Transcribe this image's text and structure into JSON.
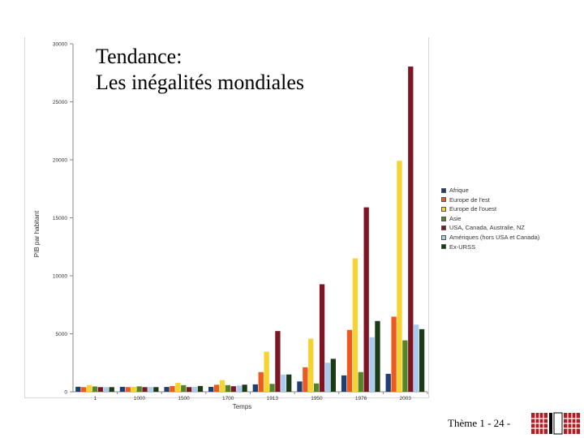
{
  "slide": {
    "title_line1": "Tendance:",
    "title_line2": "Les inégalités mondiales",
    "footer": "Thème 1 - 24 -"
  },
  "chart_data": {
    "type": "bar",
    "title": "",
    "xlabel": "Temps",
    "ylabel": "PIB par habitant",
    "ylim": [
      0,
      30000
    ],
    "yticks": [
      0,
      5000,
      10000,
      15000,
      20000,
      25000,
      30000
    ],
    "ytick_labels": [
      "0",
      "5000",
      "10000",
      "15000",
      "20000",
      "25000",
      "30000"
    ],
    "legend_position": "right",
    "categories": [
      "1",
      "1000",
      "1500",
      "1700",
      "1913",
      "1950",
      "1976",
      "2003"
    ],
    "series": [
      {
        "name": "Afrique",
        "color": "#1f3f73",
        "values": [
          430,
          425,
          414,
          421,
          637,
          890,
          1410,
          1549
        ]
      },
      {
        "name": "Europe de l'est",
        "color": "#ec5a22",
        "values": [
          400,
          400,
          496,
          606,
          1695,
          2111,
          5330,
          6476
        ]
      },
      {
        "name": "Europe de l'ouest",
        "color": "#f6d32e",
        "values": [
          576,
          427,
          771,
          997,
          3458,
          4579,
          11500,
          19912
        ]
      },
      {
        "name": "Asie",
        "color": "#55852a",
        "values": [
          456,
          466,
          568,
          571,
          680,
          717,
          1700,
          4434
        ]
      },
      {
        "name": "USA, Canada, Australie, NZ",
        "color": "#7d1523",
        "values": [
          400,
          400,
          400,
          476,
          5233,
          9268,
          15900,
          28039
        ]
      },
      {
        "name": "Amériques (hors USA et Canada)",
        "color": "#a9cbee",
        "values": [
          400,
          400,
          416,
          527,
          1481,
          2503,
          4700,
          5786
        ]
      },
      {
        "name": "Ex-URSS",
        "color": "#1c3a14",
        "values": [
          400,
          400,
          499,
          610,
          1488,
          2841,
          6100,
          5397
        ]
      }
    ]
  }
}
